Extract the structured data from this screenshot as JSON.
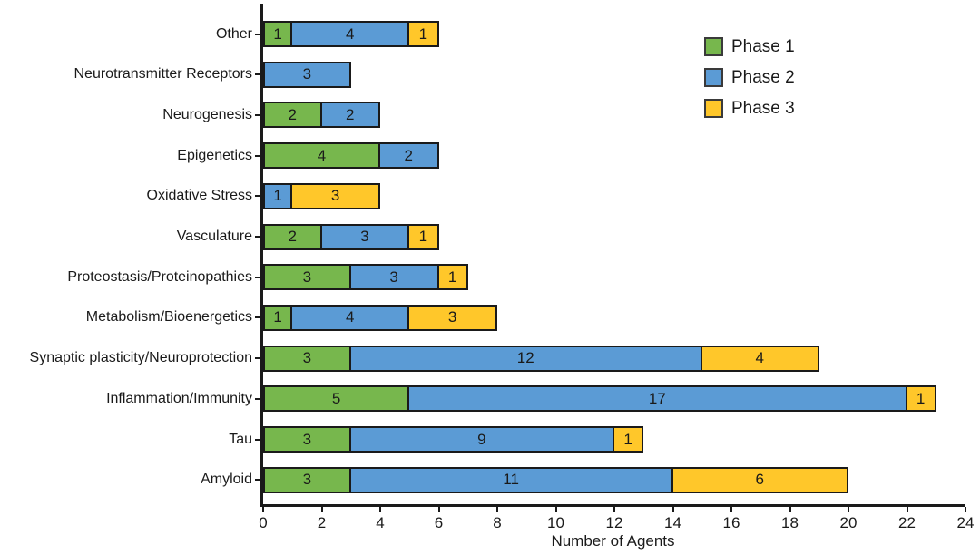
{
  "figure": {
    "background": "#ffffff",
    "axis_color": "#1a1a1a"
  },
  "chart_data": {
    "type": "bar",
    "variant": "horizontal_stacked",
    "title": "",
    "xlabel": "Number of Agents",
    "ylabel": "",
    "xlim": [
      0,
      24
    ],
    "x_ticks": [
      0,
      2,
      4,
      6,
      8,
      10,
      12,
      14,
      16,
      18,
      20,
      22,
      24
    ],
    "grid": false,
    "legend_position": "top-right",
    "categories_top_to_bottom": [
      "Other",
      "Neurotransmitter Receptors",
      "Neurogenesis",
      "Epigenetics",
      "Oxidative Stress",
      "Vasculature",
      "Proteostasis/Proteinopathies",
      "Metabolism/Bioenergetics",
      "Synaptic plasticity/Neuroprotection",
      "Inflammation/Immunity",
      "Tau",
      "Amyloid"
    ],
    "series": [
      {
        "name": "Phase 1",
        "color": "#77B74D",
        "values": [
          1,
          0,
          2,
          4,
          0,
          2,
          3,
          1,
          3,
          5,
          3,
          3
        ]
      },
      {
        "name": "Phase 2",
        "color": "#5B9BD5",
        "values": [
          4,
          3,
          2,
          2,
          1,
          3,
          3,
          4,
          12,
          17,
          9,
          11
        ]
      },
      {
        "name": "Phase 3",
        "color": "#FFC72A",
        "values": [
          1,
          0,
          0,
          0,
          3,
          1,
          1,
          3,
          4,
          1,
          1,
          6
        ]
      }
    ],
    "totals_per_category": [
      6,
      3,
      4,
      6,
      4,
      6,
      7,
      8,
      19,
      23,
      13,
      20
    ],
    "segment_labels": "each nonzero segment is labeled with its value"
  }
}
